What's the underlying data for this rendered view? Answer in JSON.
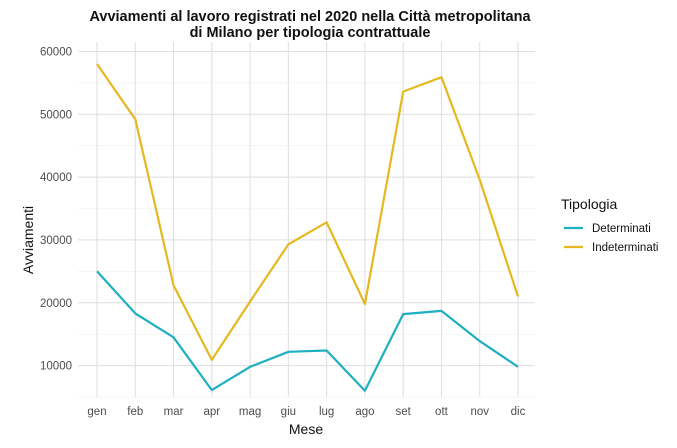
{
  "chart_data": {
    "type": "line",
    "title_lines": [
      "Avviamenti al lavoro registrati nel 2020 nella Città metropolitana",
      "di Milano per tipologia contrattuale"
    ],
    "xlabel": "Mese",
    "ylabel": "Avviamenti",
    "categories": [
      "gen",
      "feb",
      "mar",
      "apr",
      "mag",
      "giu",
      "lug",
      "ago",
      "set",
      "ott",
      "nov",
      "dic"
    ],
    "ylim": [
      5000,
      61500
    ],
    "yticks": [
      10000,
      20000,
      30000,
      40000,
      50000,
      60000
    ],
    "ytick_labels": [
      "10000",
      "20000",
      "30000",
      "40000",
      "50000",
      "60000"
    ],
    "grid": true,
    "legend_title": "Tipologia",
    "legend_position": "right",
    "series": [
      {
        "name": "Determinati",
        "color": "#1fb0c0",
        "values": [
          25000,
          18300,
          14500,
          6100,
          9800,
          12200,
          12400,
          6000,
          18200,
          18700,
          13900,
          9800
        ]
      },
      {
        "name": "Indeterminati",
        "color": "#e6b820",
        "values": [
          58000,
          49200,
          22800,
          10900,
          20200,
          29300,
          32800,
          19800,
          53600,
          55900,
          39600,
          21000
        ]
      }
    ]
  }
}
